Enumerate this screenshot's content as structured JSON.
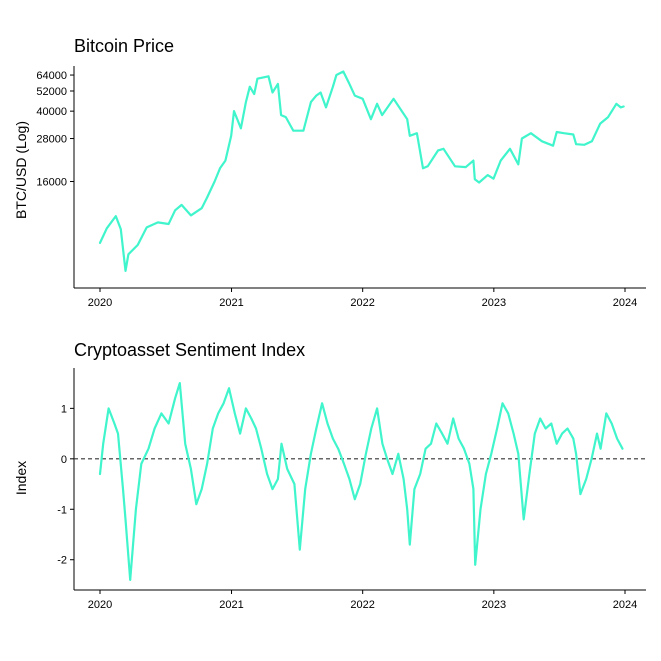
{
  "colors": {
    "series": "#40F5CC",
    "axis": "#000000",
    "zero_line": "#333333"
  },
  "chart_data": [
    {
      "type": "line",
      "title": "Bitcoin Price",
      "xlabel": "",
      "ylabel": "BTC/USD (Log)",
      "y_scale": "log",
      "xlim": [
        "2020-01-01",
        "2024-01-01"
      ],
      "ylim": [
        4000,
        72000
      ],
      "y_ticks": [
        16000,
        28000,
        40000,
        52000,
        64000
      ],
      "y_tick_labels": [
        "16000",
        "28000",
        "40000",
        "52000",
        "64000"
      ],
      "x_ticks": [
        "2020-01-01",
        "2021-01-01",
        "2022-01-01",
        "2023-01-01",
        "2024-01-01"
      ],
      "x_tick_labels": [
        "2020",
        "2021",
        "2022",
        "2023",
        "2024"
      ],
      "series": [
        {
          "x": [
            "2020-01-01",
            "2020-01-20",
            "2020-02-14",
            "2020-02-28",
            "2020-03-12",
            "2020-03-20",
            "2020-04-15",
            "2020-05-10",
            "2020-06-10",
            "2020-07-10",
            "2020-07-28",
            "2020-08-15",
            "2020-09-10",
            "2020-10-10",
            "2020-10-25",
            "2020-11-15",
            "2020-11-30",
            "2020-12-15",
            "2020-12-31",
            "2021-01-08",
            "2021-01-27",
            "2021-02-10",
            "2021-02-21",
            "2021-03-05",
            "2021-03-14",
            "2021-04-14",
            "2021-04-25",
            "2021-05-10",
            "2021-05-19",
            "2021-06-01",
            "2021-06-22",
            "2021-07-20",
            "2021-08-10",
            "2021-08-25",
            "2021-09-06",
            "2021-09-21",
            "2021-10-10",
            "2021-10-20",
            "2021-11-08",
            "2021-11-25",
            "2021-12-10",
            "2022-01-01",
            "2022-01-24",
            "2022-02-10",
            "2022-02-24",
            "2022-03-28",
            "2022-04-20",
            "2022-05-05",
            "2022-05-12",
            "2022-06-01",
            "2022-06-18",
            "2022-07-01",
            "2022-07-30",
            "2022-08-14",
            "2022-09-15",
            "2022-10-15",
            "2022-11-05",
            "2022-11-09",
            "2022-11-21",
            "2022-12-15",
            "2022-12-31",
            "2023-01-20",
            "2023-02-15",
            "2023-03-10",
            "2023-03-20",
            "2023-04-14",
            "2023-05-15",
            "2023-06-15",
            "2023-06-25",
            "2023-07-15",
            "2023-08-10",
            "2023-08-18",
            "2023-09-10",
            "2023-10-01",
            "2023-10-24",
            "2023-11-15",
            "2023-12-08",
            "2023-12-20",
            "2023-12-28"
          ],
          "values": [
            7200,
            8700,
            10200,
            8600,
            5000,
            6200,
            7000,
            8800,
            9400,
            9200,
            11000,
            11800,
            10300,
            11300,
            13000,
            16000,
            19000,
            21000,
            29000,
            40000,
            32000,
            45000,
            55000,
            50000,
            61000,
            63000,
            51000,
            57000,
            38000,
            37000,
            31000,
            31000,
            45000,
            49000,
            51000,
            42000,
            55000,
            64000,
            67000,
            57000,
            49000,
            47000,
            36000,
            44000,
            38000,
            47000,
            40000,
            36000,
            29000,
            30000,
            19000,
            19500,
            24000,
            24500,
            19500,
            19300,
            21000,
            16500,
            15800,
            17400,
            16600,
            21000,
            24500,
            20000,
            28000,
            30000,
            27000,
            25500,
            30500,
            30000,
            29500,
            26000,
            25800,
            27000,
            34000,
            37000,
            44000,
            42000,
            42500
          ]
        }
      ]
    },
    {
      "type": "line",
      "title": "Cryptoasset Sentiment Index",
      "xlabel": "",
      "ylabel": "Index",
      "xlim": [
        "2020-01-01",
        "2024-01-01"
      ],
      "ylim": [
        -2.6,
        1.8
      ],
      "y_ticks": [
        -2,
        -1,
        0,
        1
      ],
      "y_tick_labels": [
        "-2",
        "-1",
        "0",
        "1"
      ],
      "x_ticks": [
        "2020-01-01",
        "2021-01-01",
        "2022-01-01",
        "2023-01-01",
        "2024-01-01"
      ],
      "x_tick_labels": [
        "2020",
        "2021",
        "2022",
        "2023",
        "2024"
      ],
      "reference_line": {
        "y": 0,
        "style": "dashed"
      },
      "series": [
        {
          "x": [
            "2020-01-01",
            "2020-01-10",
            "2020-01-25",
            "2020-02-10",
            "2020-02-20",
            "2020-03-05",
            "2020-03-12",
            "2020-03-25",
            "2020-04-10",
            "2020-04-25",
            "2020-05-15",
            "2020-06-01",
            "2020-06-20",
            "2020-07-10",
            "2020-07-28",
            "2020-08-10",
            "2020-08-25",
            "2020-09-10",
            "2020-09-25",
            "2020-10-10",
            "2020-10-25",
            "2020-11-10",
            "2020-11-25",
            "2020-12-10",
            "2020-12-25",
            "2021-01-10",
            "2021-01-25",
            "2021-02-10",
            "2021-02-25",
            "2021-03-10",
            "2021-03-25",
            "2021-04-10",
            "2021-04-25",
            "2021-05-10",
            "2021-05-20",
            "2021-06-05",
            "2021-06-25",
            "2021-07-10",
            "2021-07-25",
            "2021-08-10",
            "2021-08-25",
            "2021-09-10",
            "2021-09-25",
            "2021-10-10",
            "2021-10-25",
            "2021-11-10",
            "2021-11-25",
            "2021-12-10",
            "2021-12-25",
            "2022-01-10",
            "2022-01-25",
            "2022-02-10",
            "2022-02-25",
            "2022-03-10",
            "2022-03-25",
            "2022-04-10",
            "2022-04-25",
            "2022-05-05",
            "2022-05-12",
            "2022-05-25",
            "2022-06-10",
            "2022-06-25",
            "2022-07-10",
            "2022-07-25",
            "2022-08-10",
            "2022-08-25",
            "2022-09-10",
            "2022-09-25",
            "2022-10-10",
            "2022-10-25",
            "2022-11-05",
            "2022-11-10",
            "2022-11-25",
            "2022-12-10",
            "2022-12-25",
            "2023-01-10",
            "2023-01-25",
            "2023-02-10",
            "2023-02-25",
            "2023-03-10",
            "2023-03-25",
            "2023-04-10",
            "2023-04-25",
            "2023-05-10",
            "2023-05-25",
            "2023-06-10",
            "2023-06-25",
            "2023-07-10",
            "2023-07-25",
            "2023-08-10",
            "2023-08-18",
            "2023-08-30",
            "2023-09-15",
            "2023-09-30",
            "2023-10-15",
            "2023-10-25",
            "2023-11-10",
            "2023-11-25",
            "2023-12-10",
            "2023-12-25"
          ],
          "values": [
            -0.3,
            0.3,
            1.0,
            0.7,
            0.5,
            -0.6,
            -1.2,
            -2.4,
            -1.0,
            -0.1,
            0.2,
            0.6,
            0.9,
            0.7,
            1.2,
            1.5,
            0.3,
            -0.2,
            -0.9,
            -0.6,
            -0.1,
            0.6,
            0.9,
            1.1,
            1.4,
            0.9,
            0.5,
            1.0,
            0.8,
            0.6,
            0.2,
            -0.3,
            -0.6,
            -0.4,
            0.3,
            -0.2,
            -0.5,
            -1.8,
            -0.6,
            0.1,
            0.6,
            1.1,
            0.7,
            0.4,
            0.2,
            -0.1,
            -0.4,
            -0.8,
            -0.5,
            0.1,
            0.6,
            1.0,
            0.3,
            0.0,
            -0.3,
            0.1,
            -0.4,
            -1.0,
            -1.7,
            -0.6,
            -0.3,
            0.2,
            0.3,
            0.7,
            0.5,
            0.3,
            0.8,
            0.4,
            0.2,
            -0.1,
            -0.6,
            -2.1,
            -1.0,
            -0.3,
            0.1,
            0.6,
            1.1,
            0.9,
            0.5,
            0.1,
            -1.2,
            -0.3,
            0.5,
            0.8,
            0.6,
            0.7,
            0.3,
            0.5,
            0.6,
            0.4,
            0.1,
            -0.7,
            -0.4,
            0.0,
            0.5,
            0.2,
            0.9,
            0.7,
            0.4,
            0.2
          ]
        }
      ]
    }
  ]
}
